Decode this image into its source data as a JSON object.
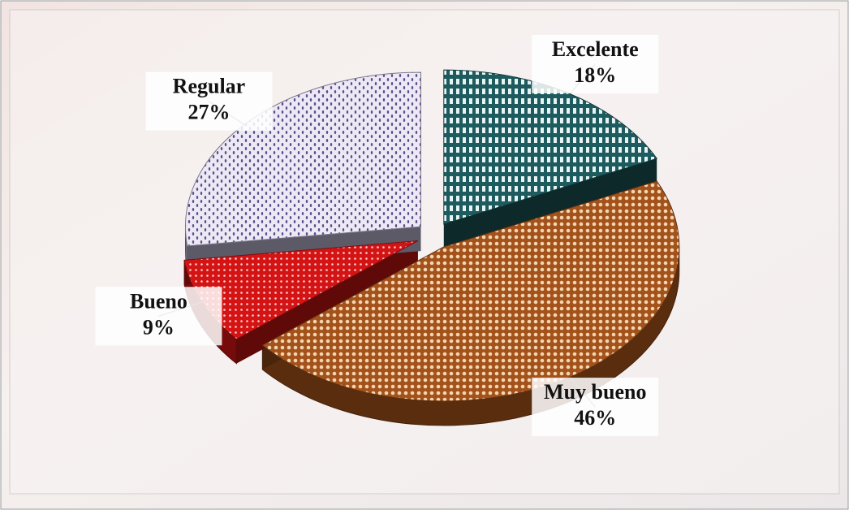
{
  "chart_data": {
    "type": "pie",
    "categories": [
      "Excelente",
      "Muy bueno",
      "Bueno",
      "Regular"
    ],
    "values": [
      18,
      46,
      9,
      27
    ],
    "value_labels": [
      "18%",
      "46%",
      "9%",
      "27%"
    ],
    "colors": [
      "#1d5b5e",
      "#a4521c",
      "#d41414",
      "#cfc7e6"
    ]
  }
}
